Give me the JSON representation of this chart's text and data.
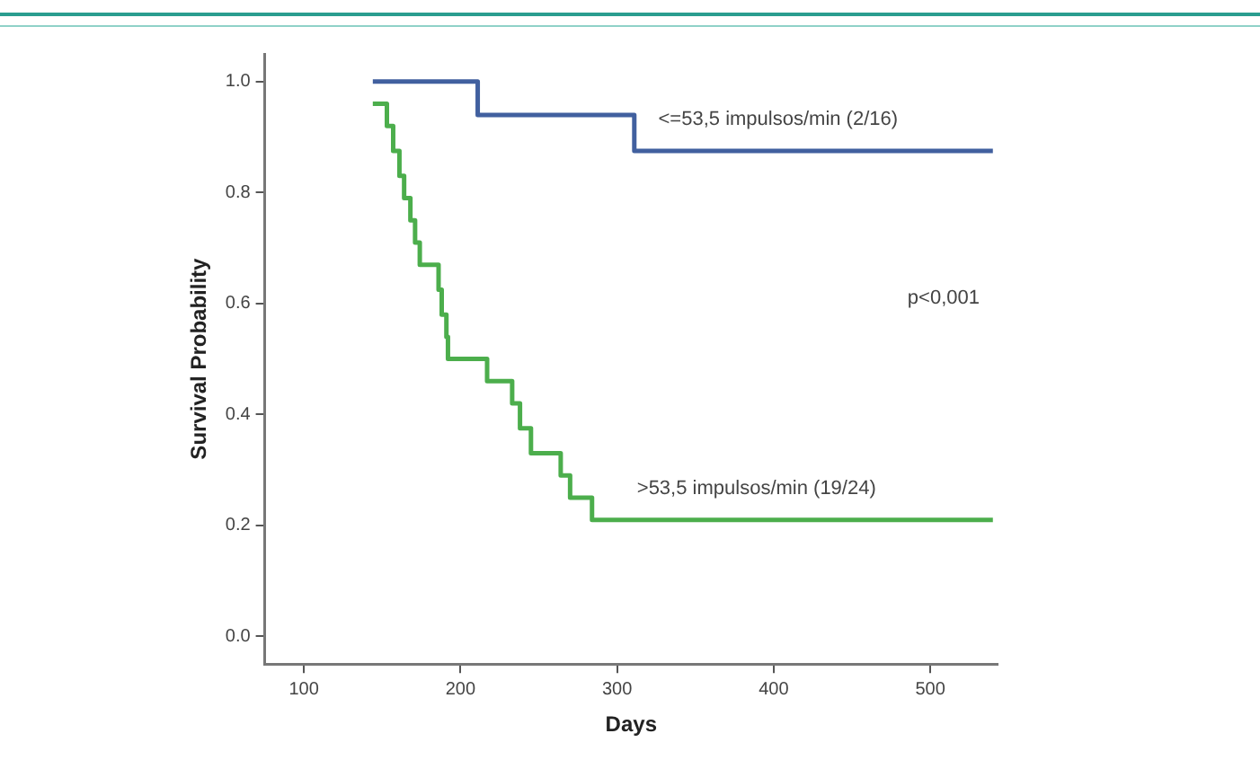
{
  "chart_data": {
    "type": "step",
    "xlabel": "Days",
    "ylabel": "Survival Probability",
    "xlim": [
      75,
      543
    ],
    "xticks": [
      100,
      200,
      300,
      400,
      500
    ],
    "ylim": [
      -0.05,
      1.05
    ],
    "yticks": [
      {
        "value": 0,
        "label": "0.0"
      },
      {
        "value": 0.2,
        "label": "0.2"
      },
      {
        "value": 0.4,
        "label": "0.4"
      },
      {
        "value": 0.6,
        "label": "0.6"
      },
      {
        "value": 0.8,
        "label": "0.8"
      },
      {
        "value": 1,
        "label": "1.0"
      }
    ],
    "grid": false,
    "legend": false,
    "line_style": "solid",
    "marker": "none",
    "annotations": [
      "p<0,001"
    ],
    "series": [
      {
        "name": "<=53,5 impulsos/min (2/16)",
        "color": "#41609f",
        "x": [
          144,
          211,
          311,
          540
        ],
        "values": [
          1,
          0.94,
          0.875,
          0.875
        ]
      },
      {
        "name": ">53,5 impulsos/min (19/24)",
        "color": "#4cae4c",
        "x": [
          144,
          153,
          157,
          161,
          164,
          168,
          171,
          174,
          186,
          188,
          191,
          192,
          217,
          233,
          238,
          245,
          264,
          270,
          284,
          540
        ],
        "values": [
          0.96,
          0.92,
          0.875,
          0.83,
          0.79,
          0.75,
          0.71,
          0.67,
          0.625,
          0.58,
          0.54,
          0.5,
          0.46,
          0.42,
          0.375,
          0.33,
          0.29,
          0.25,
          0.21,
          0.21
        ]
      }
    ]
  }
}
